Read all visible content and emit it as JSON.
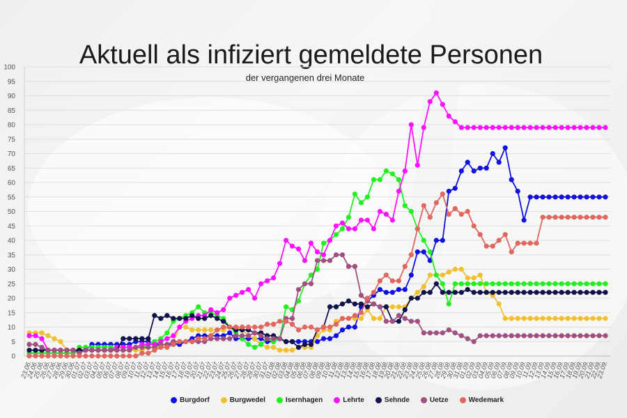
{
  "chart_data": {
    "type": "line",
    "title": "Aktuell als infiziert gemeldete Personen",
    "subtitle": "der vergangenen drei Monate",
    "ylim": [
      0,
      100
    ],
    "yticks": [
      0,
      5,
      10,
      15,
      20,
      25,
      30,
      35,
      40,
      45,
      50,
      55,
      60,
      65,
      70,
      75,
      80,
      85,
      90,
      95,
      100
    ],
    "grid": true,
    "legend": "bottom",
    "x": [
      "23.06.",
      "24.06.",
      "25.06.",
      "26.06.",
      "27.06.",
      "28.06.",
      "29.06.",
      "30.06.",
      "01.07.",
      "02.07.",
      "03.07.",
      "04.07.",
      "05.07.",
      "06.07.",
      "07.07.",
      "08.07.",
      "09.07.",
      "10.07.",
      "11.07.",
      "12.07.",
      "13.07.",
      "14.07.",
      "15.07.",
      "16.07.",
      "17.07.",
      "18.07.",
      "19.07.",
      "20.07.",
      "21.07.",
      "22.07.",
      "23.07.",
      "24.07.",
      "25.07.",
      "26.07.",
      "27.07.",
      "28.07.",
      "29.07.",
      "30.07.",
      "31.07.",
      "01.08.",
      "02.08.",
      "03.08.",
      "04.08.",
      "05.08.",
      "06.08.",
      "07.08.",
      "08.08.",
      "09.08.",
      "10.08.",
      "11.08.",
      "12.08.",
      "13.08.",
      "14.08.",
      "15.08.",
      "16.08.",
      "17.08.",
      "18.08.",
      "19.08.",
      "20.08.",
      "21.08.",
      "22.08.",
      "23.08.",
      "24.08.",
      "25.08.",
      "26.08.",
      "27.08.",
      "28.08.",
      "29.08.",
      "30.08.",
      "31.08.",
      "01.09.",
      "02.09.",
      "03.09.",
      "04.09.",
      "05.09.",
      "06.09.",
      "07.09.",
      "08.09.",
      "09.09.",
      "10.09.",
      "11.09.",
      "12.09.",
      "13.09.",
      "14.09.",
      "15.09.",
      "16.09.",
      "17.09.",
      "18.09.",
      "19.09.",
      "20.09.",
      "21.09.",
      "22.09.",
      "23.09."
    ],
    "xticks": [
      "23.06.",
      "24.06.",
      "25.06.",
      "26.06.",
      "27.06.",
      "28.06.",
      "29.06.",
      "30.06.",
      "01.07.",
      "02.07.",
      "03.07.",
      "04.07.",
      "05.07.",
      "06.07.",
      "07.07.",
      "08.07.",
      "09.07.",
      "10.07.",
      "11.07.",
      "12.07.",
      "13.07.",
      "14.07.",
      "15.07.",
      "16.07.",
      "17.07.",
      "18.07.",
      "19.07.",
      "20.07.",
      "21.07.",
      "22.07.",
      "23.07.",
      "24.07.",
      "25.07.",
      "26.07.",
      "27.07.",
      "28.07.",
      "29.07.",
      "30.07.",
      "31.07.",
      "01.08.",
      "02.08.",
      "03.08.",
      "04.08.",
      "05.08.",
      "06.08.",
      "07.08.",
      "08.08.",
      "09.08.",
      "10.08.",
      "11.08.",
      "12.08.",
      "13.08.",
      "14.08.",
      "15.08.",
      "16.08.",
      "17.08.",
      "18.08.",
      "19.08.",
      "20.08.",
      "21.08.",
      "22.08.",
      "23.08.",
      "24.08.",
      "25.08.",
      "26.08.",
      "27.08.",
      "28.08.",
      "29.08.",
      "30.08.",
      "31.08.",
      "01.09.",
      "02.09.",
      "03.09.",
      "04.09.",
      "05.09.",
      "06.09.",
      "07.09.",
      "08.09.",
      "09.09.",
      "10.09.",
      "11.09.",
      "12.09.",
      "13.09.",
      "14.09.",
      "15.09.",
      "16.09.",
      "17.09.",
      "18.09.",
      "19.09.",
      "20.09.",
      "21.09.",
      "22.09.",
      "23.09."
    ],
    "series": [
      {
        "name": "Burgdorf",
        "color": "#1010e0",
        "values": [
          1,
          1,
          1,
          1,
          1,
          1,
          1,
          1,
          2,
          2,
          4,
          4,
          4,
          4,
          4,
          4,
          4,
          5,
          5,
          5,
          4,
          4,
          4,
          4,
          4,
          5,
          6,
          7,
          7,
          7,
          7,
          7,
          8,
          6,
          6,
          6,
          6,
          6,
          5,
          5,
          6,
          5,
          5,
          5,
          5,
          5,
          5,
          6,
          6,
          7,
          9,
          10,
          10,
          17,
          19,
          21,
          23,
          22,
          22,
          23,
          23,
          28,
          36,
          36,
          33,
          40,
          40,
          57,
          58,
          64,
          67,
          64,
          65,
          65,
          70,
          67,
          72,
          61,
          57,
          47,
          55,
          55,
          55,
          55,
          55,
          55,
          55,
          55,
          55,
          55,
          55,
          55,
          55
        ]
      },
      {
        "name": "Burgwedel",
        "color": "#f0c030",
        "values": [
          8,
          8,
          8,
          7,
          6,
          5,
          2,
          2,
          2,
          2,
          2,
          2,
          2,
          2,
          2,
          2,
          2,
          2,
          2,
          3,
          3,
          3,
          4,
          5,
          10,
          10,
          9,
          9,
          9,
          9,
          9,
          9,
          10,
          10,
          9,
          7,
          6,
          4,
          3,
          3,
          2,
          2,
          2,
          3,
          3,
          3,
          7,
          9,
          9,
          12,
          13,
          13,
          13,
          13,
          16,
          13,
          13,
          17,
          17,
          17,
          17,
          20,
          22,
          24,
          28,
          28,
          28,
          29,
          30,
          30,
          27,
          27,
          28,
          22,
          21,
          18,
          13,
          13,
          13,
          13,
          13,
          13,
          13,
          13,
          13,
          13,
          13,
          13,
          13,
          13,
          13,
          13,
          13
        ]
      },
      {
        "name": "Isernhagen",
        "color": "#22ee22",
        "values": [
          1,
          1,
          1,
          1,
          1,
          1,
          1,
          1,
          3,
          3,
          3,
          3,
          3,
          3,
          3,
          3,
          3,
          3,
          3,
          4,
          5,
          6,
          8,
          12,
          13,
          14,
          15,
          17,
          15,
          15,
          14,
          13,
          10,
          8,
          6,
          4,
          3,
          4,
          6,
          5,
          6,
          17,
          16,
          19,
          25,
          28,
          30,
          39,
          40,
          42,
          44,
          48,
          56,
          53,
          55,
          61,
          61,
          64,
          63,
          61,
          52,
          50,
          44,
          40,
          36,
          28,
          25,
          18,
          25,
          25,
          25,
          25,
          25,
          25,
          25,
          25,
          25,
          25,
          25,
          25,
          25,
          25,
          25,
          25,
          25,
          25,
          25,
          25,
          25,
          25,
          25,
          25,
          25
        ]
      },
      {
        "name": "Lehrte",
        "color": "#ff10ff",
        "values": [
          7,
          7,
          6,
          2,
          2,
          2,
          2,
          2,
          2,
          2,
          2,
          2,
          2,
          2,
          3,
          3,
          3,
          3,
          4,
          4,
          4,
          5,
          6,
          7,
          10,
          12,
          13,
          14,
          14,
          16,
          15,
          16,
          20,
          21,
          22,
          23,
          20,
          25,
          26,
          27,
          32,
          40,
          38,
          37,
          33,
          39,
          36,
          35,
          40,
          45,
          46,
          44,
          44,
          47,
          47,
          44,
          50,
          49,
          47,
          57,
          64,
          80,
          66,
          79,
          88,
          91,
          87,
          83,
          81,
          79,
          79,
          79,
          79,
          79,
          79,
          79,
          79,
          79,
          79,
          79,
          79,
          79,
          79,
          79,
          79,
          79,
          79,
          79,
          79,
          79,
          79,
          79,
          79
        ]
      },
      {
        "name": "Sehnde",
        "color": "#12124a",
        "values": [
          2,
          2,
          2,
          2,
          2,
          2,
          2,
          2,
          2,
          2,
          2,
          2,
          2,
          2,
          2,
          6,
          6,
          6,
          6,
          6,
          14,
          13,
          14,
          13,
          13,
          13,
          14,
          13,
          13,
          14,
          13,
          12,
          10,
          9,
          9,
          9,
          8,
          8,
          7,
          7,
          6,
          5,
          5,
          3,
          4,
          4,
          9,
          10,
          17,
          17,
          18,
          19,
          18,
          18,
          17,
          18,
          17,
          17,
          12,
          12,
          16,
          20,
          20,
          22,
          22,
          25,
          22,
          22,
          22,
          22,
          23,
          22,
          22,
          22,
          22,
          22,
          22,
          22,
          22,
          22,
          22,
          22,
          22,
          22,
          22,
          22,
          22,
          22,
          22,
          22,
          22,
          22,
          22
        ]
      },
      {
        "name": "Uetze",
        "color": "#a05080",
        "values": [
          4,
          4,
          3,
          2,
          2,
          2,
          2,
          2,
          1,
          2,
          2,
          2,
          2,
          2,
          2,
          2,
          2,
          3,
          3,
          3,
          3,
          4,
          4,
          5,
          5,
          5,
          5,
          5,
          5,
          6,
          6,
          6,
          6,
          7,
          7,
          7,
          8,
          7,
          6,
          6,
          6,
          13,
          13,
          23,
          25,
          25,
          33,
          33,
          33,
          35,
          35,
          31,
          31,
          21,
          19,
          18,
          17,
          12,
          12,
          14,
          13,
          12,
          12,
          8,
          8,
          8,
          8,
          9,
          8,
          7,
          6,
          5,
          7,
          7,
          7,
          7,
          7,
          7,
          7,
          7,
          7,
          7,
          7,
          7,
          7,
          7,
          7,
          7,
          7,
          7,
          7,
          7,
          7
        ]
      },
      {
        "name": "Wedemark",
        "color": "#e06660",
        "values": [
          0,
          0,
          0,
          0,
          0,
          0,
          0,
          0,
          0,
          0,
          0,
          0,
          0,
          0,
          0,
          0,
          0,
          0,
          1,
          1,
          2,
          3,
          3,
          4,
          5,
          5,
          5,
          6,
          6,
          7,
          9,
          10,
          10,
          10,
          10,
          10,
          10,
          10,
          11,
          11,
          12,
          12,
          11,
          9,
          10,
          10,
          9,
          10,
          10,
          11,
          13,
          13,
          14,
          15,
          20,
          22,
          26,
          28,
          26,
          26,
          31,
          35,
          44,
          52,
          48,
          53,
          56,
          49,
          51,
          49,
          50,
          45,
          42,
          38,
          38,
          40,
          42,
          36,
          39,
          39,
          39,
          39,
          48,
          48,
          48,
          48,
          48,
          48,
          48,
          48,
          48,
          48,
          48
        ]
      }
    ]
  }
}
